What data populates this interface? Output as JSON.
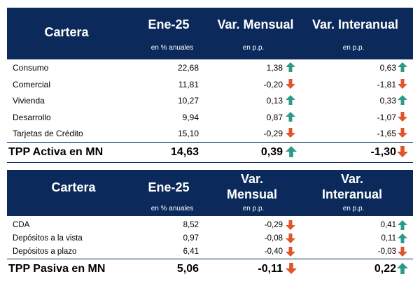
{
  "colors": {
    "header_bg": "#0b2a5b",
    "arrow_up": "#2e9b8a",
    "arrow_down": "#e0562a"
  },
  "table1": {
    "header": {
      "cartera": "Cartera",
      "month": "Ene-25",
      "var_mensual": "Var. Mensual",
      "var_interanual": "Var. Interanual"
    },
    "subheader": {
      "month": "en % anuales",
      "var_mensual": "en p.p.",
      "var_interanual": "en p.p."
    },
    "rows": [
      {
        "label": "Consumo",
        "value": "22,68",
        "var_m": "1,38",
        "var_m_dir": "up",
        "var_i": "0,63",
        "var_i_dir": "up"
      },
      {
        "label": "Comercial",
        "value": "11,81",
        "var_m": "-0,20",
        "var_m_dir": "down",
        "var_i": "-1,81",
        "var_i_dir": "down"
      },
      {
        "label": "Vivienda",
        "value": "10,27",
        "var_m": "0,13",
        "var_m_dir": "up",
        "var_i": "0,33",
        "var_i_dir": "up"
      },
      {
        "label": "Desarrollo",
        "value": "9,94",
        "var_m": "0,87",
        "var_m_dir": "up",
        "var_i": "-1,07",
        "var_i_dir": "down"
      },
      {
        "label": "Tarjetas de Crédito",
        "value": "15,10",
        "var_m": "-0,29",
        "var_m_dir": "down",
        "var_i": "-1,65",
        "var_i_dir": "down"
      }
    ],
    "total": {
      "label": "TPP Activa en MN",
      "value": "14,63",
      "var_m": "0,39",
      "var_m_dir": "up",
      "var_i": "-1,30",
      "var_i_dir": "down"
    }
  },
  "table2": {
    "header": {
      "cartera": "Cartera",
      "month": "Ene-25",
      "var_mensual_1": "Var.",
      "var_mensual_2": "Mensual",
      "var_interanual_1": "Var.",
      "var_interanual_2": "Interanual"
    },
    "subheader": {
      "month": "en % anuales",
      "var_mensual": "en p.p.",
      "var_interanual": "en p.p."
    },
    "rows": [
      {
        "label": "CDA",
        "value": "8,52",
        "var_m": "-0,29",
        "var_m_dir": "down",
        "var_i": "0,41",
        "var_i_dir": "up"
      },
      {
        "label": "Depósitos a la vista",
        "value": "0,97",
        "var_m": "-0,08",
        "var_m_dir": "down",
        "var_i": "0,11",
        "var_i_dir": "up"
      },
      {
        "label": "Depósitos a plazo",
        "value": "6,41",
        "var_m": "-0,40",
        "var_m_dir": "down",
        "var_i": "-0,03",
        "var_i_dir": "down"
      }
    ],
    "total": {
      "label": "TPP Pasiva en MN",
      "value": "5,06",
      "var_m": "-0,11",
      "var_m_dir": "down",
      "var_i": "0,22",
      "var_i_dir": "up"
    }
  }
}
